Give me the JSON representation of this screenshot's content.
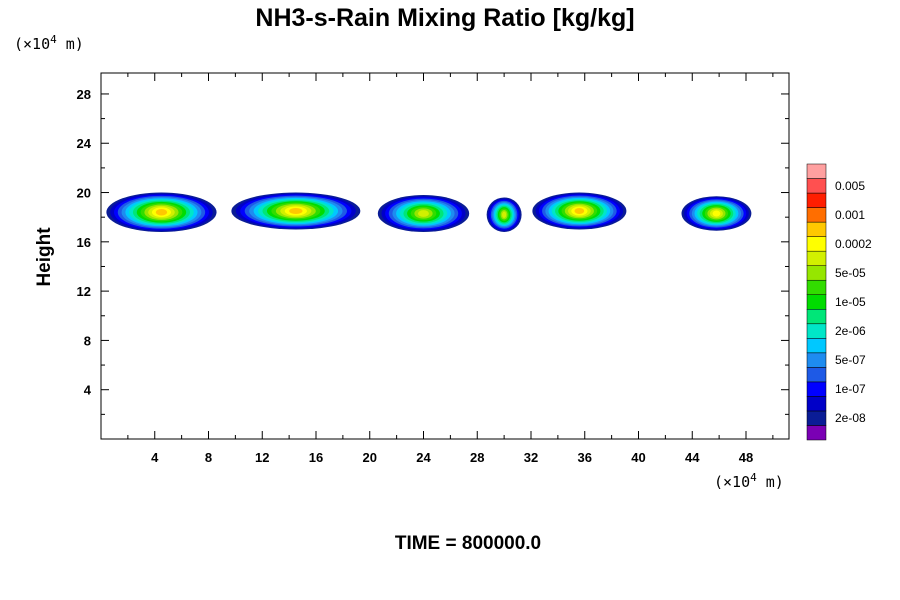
{
  "chart_data": {
    "type": "heatmap",
    "title": "NH3-s-Rain Mixing Ratio [kg/kg]",
    "ylabel": "Height",
    "xlabel": "",
    "x_unit_prefix": "(×10",
    "x_unit_exp": "4",
    "x_unit_suffix": " m)",
    "y_unit_prefix": "(×10",
    "y_unit_exp": "4",
    "y_unit_suffix": " m)",
    "xlim": [
      0,
      51.2
    ],
    "ylim": [
      0,
      29.7
    ],
    "x_ticks": [
      4,
      8,
      12,
      16,
      20,
      24,
      28,
      32,
      36,
      40,
      44,
      48
    ],
    "y_ticks": [
      4,
      8,
      12,
      16,
      20,
      24,
      28
    ],
    "grid": false,
    "footer": "TIME = 800000.0",
    "colorbar": {
      "levels": [
        "",
        "2e-08",
        "",
        "1e-07",
        "",
        "5e-07",
        "",
        "2e-06",
        "",
        "1e-05",
        "",
        "5e-05",
        "",
        "0.0002",
        "",
        "0.001",
        "",
        "0.005",
        ""
      ],
      "colors": [
        "#7a00b4",
        "#0a1c96",
        "#0000c8",
        "#0000ff",
        "#1e5ae6",
        "#1e8cf0",
        "#00c8ff",
        "#00e6c8",
        "#00e678",
        "#00dc00",
        "#32dc00",
        "#96e600",
        "#d2f000",
        "#ffff00",
        "#ffc800",
        "#ff6e00",
        "#ff1e00",
        "#ff5050",
        "#ffa0a0"
      ]
    },
    "cells": [
      {
        "xc": 4.5,
        "xw": 8.2,
        "yc": 18.4,
        "yh": 3.2,
        "peak": 13
      },
      {
        "xc": 14.5,
        "xw": 9.6,
        "yc": 18.5,
        "yh": 3.0,
        "peak": 13
      },
      {
        "xc": 24.0,
        "xw": 6.8,
        "yc": 18.3,
        "yh": 3.0,
        "peak": 11
      },
      {
        "xc": 30.0,
        "xw": 2.6,
        "yc": 18.2,
        "yh": 2.8,
        "peak": 11
      },
      {
        "xc": 35.6,
        "xw": 7.0,
        "yc": 18.5,
        "yh": 3.0,
        "peak": 13
      },
      {
        "xc": 45.8,
        "xw": 5.2,
        "yc": 18.3,
        "yh": 2.8,
        "peak": 12
      }
    ]
  }
}
